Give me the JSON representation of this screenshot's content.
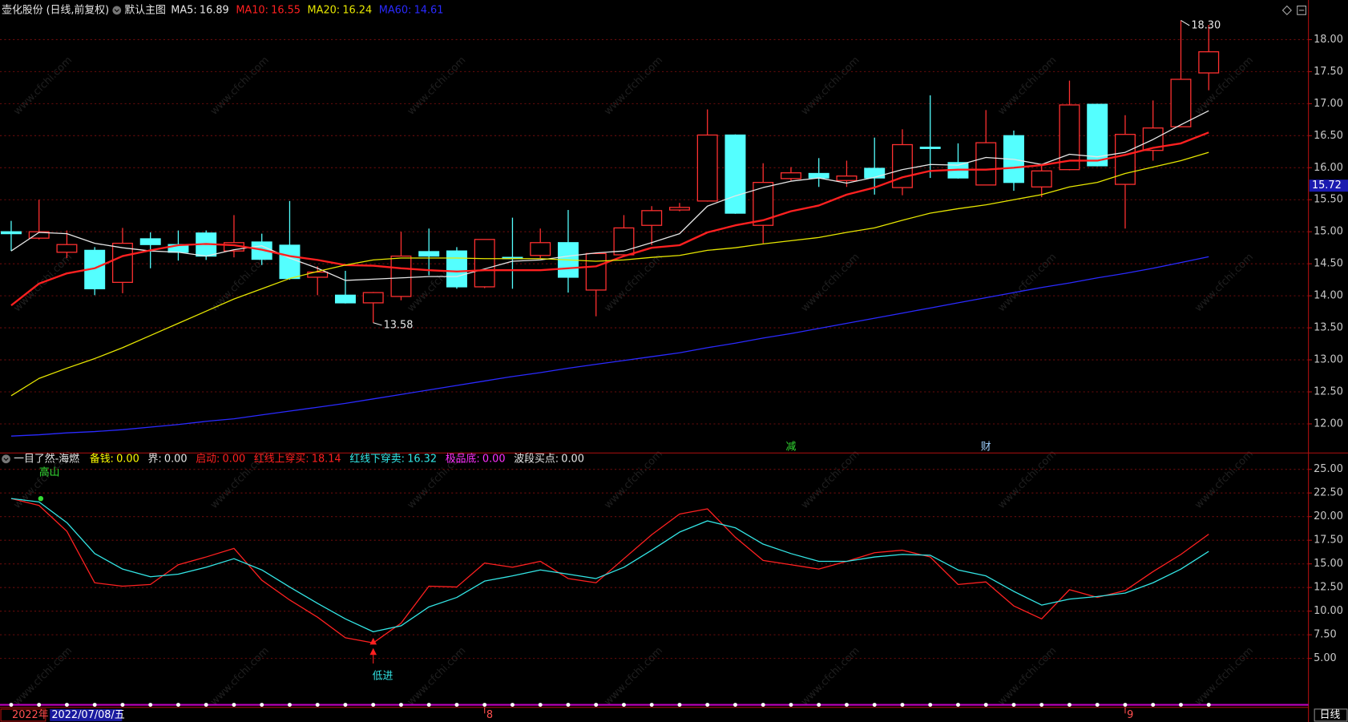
{
  "header": {
    "title": "壶化股份 (日线,前复权)",
    "template": "默认主图"
  },
  "watermark": "www.cfchi.com",
  "chart_data": [
    {
      "type": "candlestick",
      "up_color": "#ff3030",
      "down_color": "#54ffff",
      "grid": true,
      "ylim": [
        11.64,
        18.35
      ],
      "yticks": [
        {
          "value": 12,
          "label": "12.00"
        },
        {
          "value": 12.5,
          "label": "12.50"
        },
        {
          "value": 13,
          "label": "13.00"
        },
        {
          "value": 13.5,
          "label": "13.50"
        },
        {
          "value": 14,
          "label": "14.00"
        },
        {
          "value": 14.5,
          "label": "14.50"
        },
        {
          "value": 15,
          "label": "15.00"
        },
        {
          "value": 15.5,
          "label": "15.50"
        },
        {
          "value": 16,
          "label": "16.00"
        },
        {
          "value": 16.5,
          "label": "16.50"
        },
        {
          "value": 17,
          "label": "17.00"
        },
        {
          "value": 17.5,
          "label": "17.50"
        },
        {
          "value": 18,
          "label": "18.00"
        }
      ],
      "open": [
        15.0,
        14.9,
        14.68,
        14.71,
        14.21,
        14.89,
        14.8,
        14.98,
        14.7,
        14.84,
        14.79,
        14.29,
        14.01,
        13.89,
        13.99,
        14.69,
        14.7,
        14.14,
        14.6,
        14.63,
        14.83,
        14.09,
        14.64,
        15.1,
        15.34,
        15.48,
        16.51,
        15.1,
        15.83,
        15.91,
        15.8,
        15.99,
        15.69,
        16.32,
        16.08,
        15.73,
        16.5,
        15.7,
        15.97,
        16.99,
        15.74,
        16.27,
        16.64,
        17.48
      ],
      "high": [
        15.17,
        15.5,
        15.02,
        14.76,
        15.06,
        14.99,
        15.02,
        15.02,
        15.26,
        14.97,
        15.48,
        14.46,
        14.39,
        14.06,
        15.0,
        15.05,
        14.76,
        14.88,
        15.22,
        15.05,
        15.34,
        14.67,
        15.26,
        15.4,
        15.45,
        16.91,
        16.52,
        16.07,
        16.01,
        16.15,
        16.11,
        16.47,
        16.6,
        17.13,
        16.38,
        16.9,
        16.58,
        16.05,
        17.36,
        17.0,
        16.82,
        17.05,
        18.3,
        18.23
      ],
      "low": [
        14.7,
        14.88,
        14.59,
        14.01,
        14.04,
        14.43,
        14.55,
        14.56,
        14.6,
        14.48,
        14.25,
        14.01,
        13.88,
        13.58,
        13.93,
        14.32,
        14.11,
        14.12,
        14.11,
        14.59,
        14.05,
        13.68,
        14.64,
        14.79,
        15.32,
        15.47,
        15.28,
        14.82,
        15.8,
        15.7,
        15.7,
        15.58,
        15.57,
        15.84,
        15.83,
        15.73,
        15.64,
        15.54,
        15.96,
        16.02,
        15.05,
        16.11,
        16.63,
        17.21
      ],
      "close": [
        14.97,
        15.0,
        14.8,
        14.11,
        14.82,
        14.8,
        14.68,
        14.62,
        14.83,
        14.57,
        14.27,
        14.37,
        13.89,
        14.05,
        14.62,
        14.62,
        14.14,
        14.88,
        14.58,
        14.83,
        14.29,
        14.66,
        15.06,
        15.33,
        15.38,
        16.51,
        15.29,
        15.77,
        15.92,
        15.84,
        15.87,
        15.84,
        16.36,
        16.3,
        15.84,
        16.39,
        15.77,
        15.95,
        16.98,
        16.03,
        16.52,
        16.62,
        17.38,
        17.81
      ],
      "series": [
        {
          "name": "MA5:",
          "color": "#e6e6e6",
          "values": [
            14.7,
            14.99,
            14.97,
            14.82,
            14.75,
            14.7,
            14.68,
            14.62,
            14.72,
            14.78,
            14.59,
            14.43,
            14.24,
            14.26,
            14.28,
            14.3,
            14.3,
            14.42,
            14.54,
            14.56,
            14.62,
            14.67,
            14.7,
            14.83,
            14.97,
            15.4,
            15.56,
            15.69,
            15.79,
            15.84,
            15.76,
            15.85,
            15.97,
            16.05,
            16.04,
            16.16,
            16.13,
            16.05,
            16.21,
            16.17,
            16.24,
            16.44,
            16.67,
            16.89
          ]
        },
        {
          "name": "MA10:",
          "color": "#ff2020",
          "values": [
            13.85,
            14.19,
            14.35,
            14.43,
            14.62,
            14.71,
            14.79,
            14.81,
            14.79,
            14.72,
            14.62,
            14.56,
            14.48,
            14.47,
            14.43,
            14.4,
            14.38,
            14.4,
            14.4,
            14.4,
            14.43,
            14.46,
            14.62,
            14.75,
            14.79,
            14.99,
            15.1,
            15.18,
            15.32,
            15.41,
            15.58,
            15.69,
            15.85,
            15.95,
            15.97,
            15.97,
            16.0,
            16.04,
            16.11,
            16.11,
            16.2,
            16.31,
            16.38,
            16.55
          ]
        },
        {
          "name": "MA20:",
          "color": "#e6e600",
          "values": [
            12.44,
            12.71,
            12.87,
            13.02,
            13.19,
            13.38,
            13.57,
            13.76,
            13.95,
            14.11,
            14.27,
            14.38,
            14.48,
            14.56,
            14.59,
            14.59,
            14.59,
            14.58,
            14.58,
            14.58,
            14.56,
            14.54,
            14.56,
            14.6,
            14.63,
            14.71,
            14.75,
            14.81,
            14.86,
            14.91,
            14.99,
            15.06,
            15.18,
            15.29,
            15.36,
            15.42,
            15.5,
            15.58,
            15.7,
            15.77,
            15.91,
            16.01,
            16.11,
            16.24
          ]
        },
        {
          "name": "MA60:",
          "color": "#2a2aff",
          "values": [
            11.81,
            11.83,
            11.86,
            11.88,
            11.91,
            11.95,
            11.99,
            12.04,
            12.08,
            12.14,
            12.2,
            12.26,
            12.32,
            12.39,
            12.46,
            12.53,
            12.6,
            12.67,
            12.74,
            12.8,
            12.87,
            12.93,
            12.99,
            13.05,
            13.11,
            13.19,
            13.26,
            13.34,
            13.41,
            13.49,
            13.57,
            13.65,
            13.73,
            13.81,
            13.89,
            13.97,
            14.05,
            14.13,
            14.2,
            14.28,
            14.35,
            14.43,
            14.52,
            14.61
          ]
        }
      ],
      "annotations": [
        {
          "label": "18.30",
          "value": 18.3,
          "index": 42
        },
        {
          "label": "13.58",
          "value": 13.58,
          "index": 13
        }
      ],
      "price_marker": {
        "value": 15.72,
        "label": "15.72"
      },
      "signals": [
        {
          "text": "减",
          "index": 28,
          "color": "#33dd33"
        },
        {
          "text": "财",
          "index": 35,
          "color": "#9fd0ff"
        }
      ]
    },
    {
      "type": "line",
      "title": "一目了然-海燃",
      "grid": true,
      "ylim": [
        0,
        25.55
      ],
      "yticks": [
        {
          "value": 5,
          "label": "5.00"
        },
        {
          "value": 7.5,
          "label": "7.50"
        },
        {
          "value": 10,
          "label": "10.00"
        },
        {
          "value": 12.5,
          "label": "12.50"
        },
        {
          "value": 15,
          "label": "15.00"
        },
        {
          "value": 17.5,
          "label": "17.50"
        },
        {
          "value": 20,
          "label": "20.00"
        },
        {
          "value": 22.5,
          "label": "22.50"
        },
        {
          "value": 25,
          "label": "25.00"
        }
      ],
      "readouts_before": [
        {
          "name": "备钱:",
          "text": "0.00",
          "color": "#ffff00"
        },
        {
          "name": "界:",
          "text": "0.00",
          "color": "#e6e6e6"
        },
        {
          "name": "启动:",
          "text": "0.00",
          "color": "#ff2020"
        }
      ],
      "series": [
        {
          "name": "红线上穿买:",
          "color": "#ff2020",
          "values": [
            21.91,
            21.18,
            18.45,
            13,
            12.64,
            12.82,
            14.91,
            15.73,
            16.64,
            13.27,
            11.18,
            9.36,
            7.18,
            6.64,
            8.73,
            12.64,
            12.55,
            15.09,
            14.64,
            15.27,
            13.45,
            13,
            15.55,
            18.09,
            20.27,
            20.82,
            17.82,
            15.36,
            14.91,
            14.45,
            15.27,
            16.18,
            16.45,
            15.73,
            12.82,
            13.09,
            10.55,
            9.18,
            12.27,
            11.45,
            12.18,
            14.18,
            16,
            18.14
          ]
        },
        {
          "name": "红线下穿卖:",
          "color": "#33e6e6",
          "values": [
            21.91,
            21.55,
            19.36,
            16.09,
            14.45,
            13.64,
            13.91,
            14.64,
            15.55,
            14.36,
            12.55,
            10.82,
            9.18,
            7.82,
            8.45,
            10.45,
            11.45,
            13.18,
            13.73,
            14.36,
            13.91,
            13.45,
            14.64,
            16.45,
            18.36,
            19.55,
            18.82,
            17.09,
            16.09,
            15.27,
            15.27,
            15.73,
            16,
            15.91,
            14.36,
            13.73,
            12.09,
            10.64,
            11.27,
            11.55,
            11.91,
            13,
            14.45,
            16.32
          ]
        }
      ],
      "readouts_after": [
        {
          "name": "极品底:",
          "text": "0.00",
          "color": "#ff30ff"
        },
        {
          "name": "波段买点:",
          "text": "0.00",
          "color": "#e6e6e6"
        }
      ],
      "signals": [
        {
          "text": "高山",
          "index": 1,
          "color": "#33dd33"
        },
        {
          "text": "低进",
          "index": 13,
          "color": "#33e6e6"
        }
      ]
    }
  ],
  "date_bar": {
    "year": "2022年",
    "cursor": "2022/07/08/五",
    "months": [
      {
        "label": "8",
        "index": 17
      },
      {
        "label": "9",
        "index": 40
      }
    ],
    "period": "日线"
  }
}
